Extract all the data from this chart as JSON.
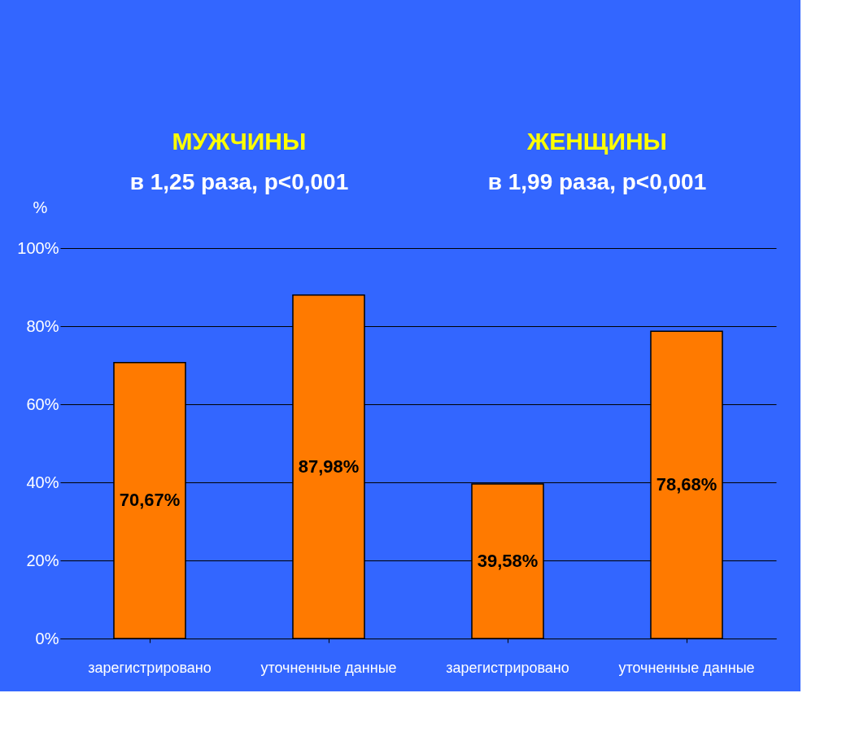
{
  "chart_data": {
    "type": "bar",
    "categories": [
      "зарегистрировано",
      "уточненные данные",
      "зарегистрировано",
      "уточненные данные"
    ],
    "values": [
      70.67,
      87.98,
      39.58,
      78.68
    ],
    "value_labels": [
      "70,67%",
      "87,98%",
      "39,58%",
      "78,68%"
    ],
    "color": "#ff7a00",
    "ylabel": "%",
    "ylim": [
      0,
      100
    ],
    "yticks": [
      {
        "value": 0,
        "label": "0%"
      },
      {
        "value": 20,
        "label": "20%"
      },
      {
        "value": 40,
        "label": "40%"
      },
      {
        "value": 60,
        "label": "60%"
      },
      {
        "value": 80,
        "label": "80%"
      },
      {
        "value": 100,
        "label": "100%"
      }
    ],
    "grid": "y",
    "annotations": [
      "МУЖЧИНЫ",
      "ЖЕНЩИНЫ",
      "в 1,25 раза, p<0,001",
      "в 1,99 раза, p<0,001"
    ]
  }
}
